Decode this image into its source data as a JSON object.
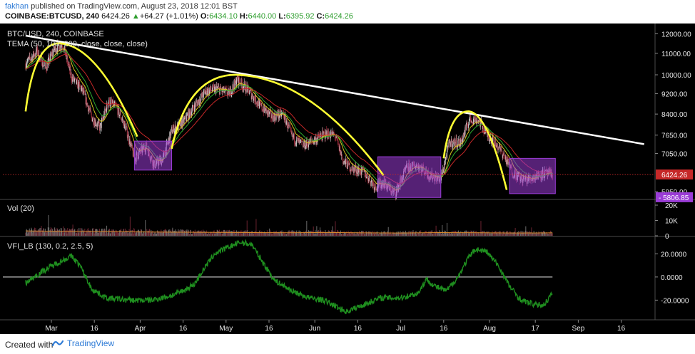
{
  "header": {
    "author": "fakhan",
    "published_text": "published on TradingView.com, August 23, 2018 12:01 BST",
    "symbol": "COINBASE:BTCUSD, 240",
    "last": "6424.26",
    "change": "+64.27 (+1.01%)",
    "open_label": "O:",
    "open": "6434.10",
    "high_label": "H:",
    "high": "6440.00",
    "low_label": "L:",
    "low": "6395.92",
    "close_label": "C:",
    "close": "6424.26"
  },
  "footer": {
    "created_with": "Created with",
    "brand": "TradingView"
  },
  "colors": {
    "bg": "#000000",
    "up": "#c8c8c8",
    "down": "#9b2a3a",
    "yellow": "#ffff33",
    "trend": "#ffffff",
    "box": "#9a3cd6",
    "ema_red": "#c62828",
    "ema_yellow": "#d6c51e",
    "ema_green": "#2ea82e",
    "vfi": "#1f8f1f",
    "last_tag": "#c62828",
    "low_tag": "#9a3cd6"
  },
  "chart_data": [
    {
      "type": "candlestick",
      "title": "BTC/USD, 240, COINBASE",
      "legend": [
        "TEMA (50, 100, 200, close, close, close)"
      ],
      "x_ticks": [
        "Mar",
        "16",
        "Apr",
        "16",
        "May",
        "16",
        "Jun",
        "16",
        "Jul",
        "16",
        "Aug",
        "17",
        "Sep",
        "16"
      ],
      "y_scale": "log",
      "y_ticks": [
        12000.0,
        11000.0,
        10000.0,
        9200.0,
        8400.0,
        7650.0,
        7050.0,
        6424.26,
        5950.0,
        5806.85
      ],
      "y_tick_labels": [
        "12000.00",
        "11000.00",
        "10000.00",
        "9200.00",
        "8400.00",
        "7650.00",
        "7050.00",
        "5950.00"
      ],
      "last_price_tag": "6424.26",
      "low_price_tag": "5806.85",
      "ylim": [
        5750,
        12400
      ],
      "price_path": [
        {
          "x": "Feb 20",
          "y": 10500
        },
        {
          "x": "Feb 24",
          "y": 11100
        },
        {
          "x": "Feb 27",
          "y": 10300
        },
        {
          "x": "Mar 2",
          "y": 11200
        },
        {
          "x": "Mar 5",
          "y": 11450
        },
        {
          "x": "Mar 8",
          "y": 9900
        },
        {
          "x": "Mar 12",
          "y": 9300
        },
        {
          "x": "Mar 15",
          "y": 8300
        },
        {
          "x": "Mar 18",
          "y": 7900
        },
        {
          "x": "Mar 21",
          "y": 8900
        },
        {
          "x": "Mar 24",
          "y": 8600
        },
        {
          "x": "Mar 27",
          "y": 7900
        },
        {
          "x": "Mar 30",
          "y": 6900
        },
        {
          "x": "Apr 3",
          "y": 7300
        },
        {
          "x": "Apr 6",
          "y": 6700
        },
        {
          "x": "Apr 9",
          "y": 6900
        },
        {
          "x": "Apr 12",
          "y": 7800
        },
        {
          "x": "Apr 16",
          "y": 8100
        },
        {
          "x": "Apr 20",
          "y": 8700
        },
        {
          "x": "Apr 24",
          "y": 9300
        },
        {
          "x": "Apr 28",
          "y": 9400
        },
        {
          "x": "May 2",
          "y": 9200
        },
        {
          "x": "May 5",
          "y": 9800
        },
        {
          "x": "May 9",
          "y": 9300
        },
        {
          "x": "May 13",
          "y": 8700
        },
        {
          "x": "May 17",
          "y": 8300
        },
        {
          "x": "May 21",
          "y": 8400
        },
        {
          "x": "May 24",
          "y": 7600
        },
        {
          "x": "May 28",
          "y": 7300
        },
        {
          "x": "Jun 1",
          "y": 7500
        },
        {
          "x": "Jun 5",
          "y": 7700
        },
        {
          "x": "Jun 8",
          "y": 7650
        },
        {
          "x": "Jun 11",
          "y": 6800
        },
        {
          "x": "Jun 14",
          "y": 6600
        },
        {
          "x": "Jun 18",
          "y": 6500
        },
        {
          "x": "Jun 22",
          "y": 6100
        },
        {
          "x": "Jun 25",
          "y": 6200
        },
        {
          "x": "Jun 29",
          "y": 5900
        },
        {
          "x": "Jul 3",
          "y": 6600
        },
        {
          "x": "Jul 7",
          "y": 6700
        },
        {
          "x": "Jul 11",
          "y": 6400
        },
        {
          "x": "Jul 15",
          "y": 6300
        },
        {
          "x": "Jul 18",
          "y": 7400
        },
        {
          "x": "Jul 22",
          "y": 7400
        },
        {
          "x": "Jul 25",
          "y": 8200
        },
        {
          "x": "Jul 28",
          "y": 8200
        },
        {
          "x": "Jul 31",
          "y": 7700
        },
        {
          "x": "Aug 3",
          "y": 7400
        },
        {
          "x": "Aug 6",
          "y": 7000
        },
        {
          "x": "Aug 9",
          "y": 6500
        },
        {
          "x": "Aug 12",
          "y": 6300
        },
        {
          "x": "Aug 15",
          "y": 6300
        },
        {
          "x": "Aug 19",
          "y": 6450
        },
        {
          "x": "Aug 23",
          "y": 6424
        }
      ],
      "trend_line": [
        {
          "x": "Feb 20",
          "y": 11900
        },
        {
          "x": "Sep 24",
          "y": 7350
        }
      ],
      "cup_arcs": [
        {
          "from": {
            "x": "Feb 20",
            "y": 8500
          },
          "peak": {
            "x": "Mar 4",
            "y": 11500
          },
          "to": {
            "x": "Mar 31",
            "y": 7600
          }
        },
        {
          "from": {
            "x": "Apr 12",
            "y": 7200
          },
          "peak": {
            "x": "May 5",
            "y": 10000
          },
          "to": {
            "x": "Jun 25",
            "y": 6400
          }
        },
        {
          "from": {
            "x": "Jul 16",
            "y": 6900
          },
          "peak": {
            "x": "Jul 25",
            "y": 8500
          },
          "to": {
            "x": "Aug 7",
            "y": 6000
          }
        }
      ],
      "boxes": [
        {
          "x0": "Mar 30",
          "x1": "Apr 12",
          "y_low": 6550,
          "y_high": 7450
        },
        {
          "x0": "Jun 23",
          "x1": "Jul 15",
          "y_low": 5800,
          "y_high": 6950
        },
        {
          "x0": "Aug 8",
          "x1": "Aug 24",
          "y_low": 5900,
          "y_high": 6900
        }
      ]
    },
    {
      "type": "bar",
      "title": "Vol (20)",
      "y_ticks": [
        20000,
        10000,
        0
      ],
      "y_tick_labels": [
        "20K",
        "10K",
        "0"
      ],
      "ylim": [
        0,
        20000
      ],
      "values_level": [
        3500,
        3200,
        3000,
        2800,
        2600,
        2500,
        2300,
        2200,
        2400,
        2100,
        2000,
        2300,
        2200,
        2000,
        2100
      ]
    },
    {
      "type": "line",
      "title": "VFI_LB (130, 0.2, 2.5, 5)",
      "y_ticks": [
        20,
        0,
        -20
      ],
      "y_tick_labels": [
        "20.0000",
        "0.0000",
        "-20.0000"
      ],
      "ylim": [
        -37,
        35
      ],
      "zero_line": 0,
      "series": [
        {
          "values": [
            {
              "x": "Feb 20",
              "y": -5
            },
            {
              "x": "Feb 26",
              "y": 5
            },
            {
              "x": "Mar 3",
              "y": 12
            },
            {
              "x": "Mar 8",
              "y": 18
            },
            {
              "x": "Mar 11",
              "y": 10
            },
            {
              "x": "Mar 15",
              "y": -10
            },
            {
              "x": "Mar 20",
              "y": -18
            },
            {
              "x": "Mar 28",
              "y": -20
            },
            {
              "x": "Apr 5",
              "y": -20
            },
            {
              "x": "Apr 12",
              "y": -16
            },
            {
              "x": "Apr 16",
              "y": -12
            },
            {
              "x": "Apr 20",
              "y": -6
            },
            {
              "x": "Apr 23",
              "y": 6
            },
            {
              "x": "Apr 27",
              "y": 20
            },
            {
              "x": "May 2",
              "y": 26
            },
            {
              "x": "May 6",
              "y": 30
            },
            {
              "x": "May 10",
              "y": 28
            },
            {
              "x": "May 14",
              "y": 12
            },
            {
              "x": "May 18",
              "y": -3
            },
            {
              "x": "May 24",
              "y": -12
            },
            {
              "x": "May 30",
              "y": -18
            },
            {
              "x": "Jun 4",
              "y": -20
            },
            {
              "x": "Jun 8",
              "y": -25
            },
            {
              "x": "Jun 12",
              "y": -30
            },
            {
              "x": "Jun 18",
              "y": -24
            },
            {
              "x": "Jun 24",
              "y": -18
            },
            {
              "x": "Jul 1",
              "y": -18
            },
            {
              "x": "Jul 7",
              "y": -14
            },
            {
              "x": "Jul 10",
              "y": -2
            },
            {
              "x": "Jul 13",
              "y": -8
            },
            {
              "x": "Jul 17",
              "y": -12
            },
            {
              "x": "Jul 21",
              "y": 0
            },
            {
              "x": "Jul 24",
              "y": 14
            },
            {
              "x": "Jul 27",
              "y": 24
            },
            {
              "x": "Jul 31",
              "y": 22
            },
            {
              "x": "Aug 4",
              "y": 10
            },
            {
              "x": "Aug 8",
              "y": -8
            },
            {
              "x": "Aug 12",
              "y": -20
            },
            {
              "x": "Aug 17",
              "y": -24
            },
            {
              "x": "Aug 20",
              "y": -24
            },
            {
              "x": "Aug 23",
              "y": -14
            }
          ]
        }
      ]
    }
  ]
}
